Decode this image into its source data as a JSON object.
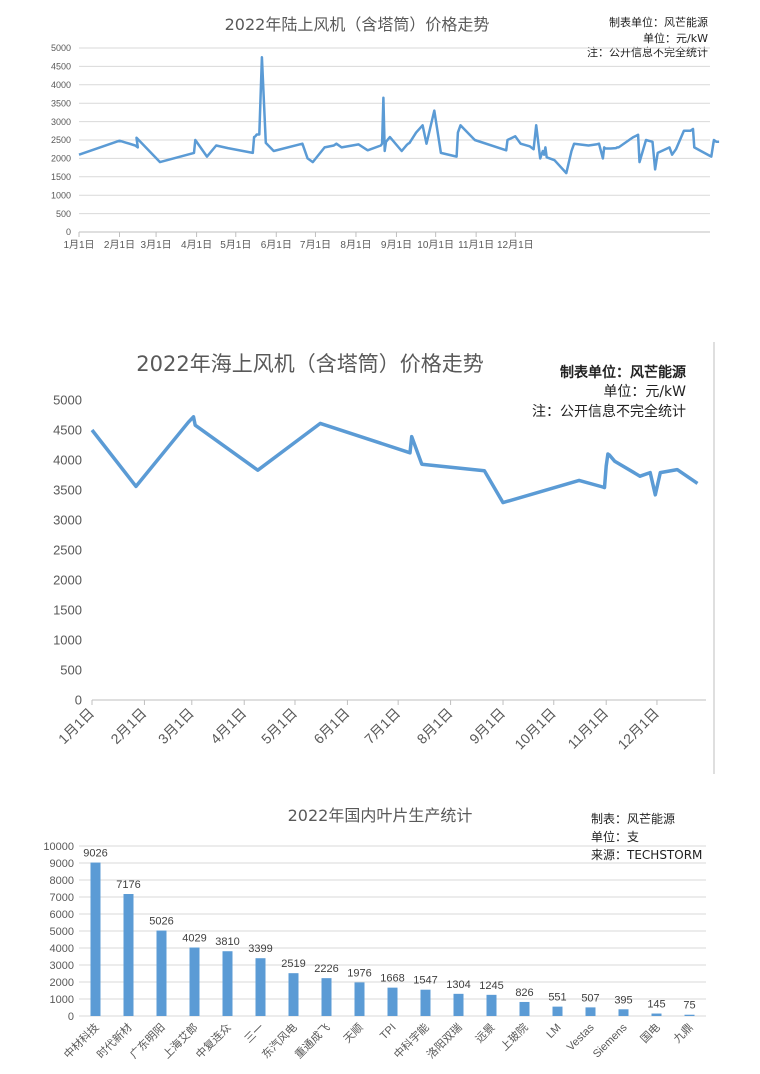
{
  "chart_data": [
    {
      "type": "line",
      "title": "2022年陆上风机（含塔筒）价格走势",
      "notes": [
        "制表单位：风芒能源",
        "单位：元/kW",
        "注：公开信息不完全统计"
      ],
      "color": "#5b9bd5",
      "ylim": [
        0,
        5000
      ],
      "y_ticks": [
        0,
        500,
        1000,
        1500,
        2000,
        2500,
        3000,
        3500,
        4000,
        4500,
        5000
      ],
      "x_ticks": [
        "1月1日",
        "2月1日",
        "3月1日",
        "4月1日",
        "5月1日",
        "6月1日",
        "7月1日",
        "8月1日",
        "9月1日",
        "10月1日",
        "11月1日",
        "12月1日"
      ],
      "grid": true,
      "series": [
        {
          "x": [
            "2022-01-01",
            "2022-02-01",
            "2022-02-13",
            "2022-02-15",
            "2022-02-14",
            "2022-03-04",
            "2022-03-30",
            "2022-03-31",
            "2022-04-09",
            "2022-04-16",
            "2022-04-25",
            "2022-05-14",
            "2022-05-15",
            "2022-05-16",
            "2022-05-17",
            "2022-05-19",
            "2022-05-21",
            "2022-05-24",
            "2022-05-30",
            "2022-06-21",
            "2022-06-25",
            "2022-06-29",
            "2022-07-08",
            "2022-07-15",
            "2022-07-17",
            "2022-07-21",
            "2022-08-03",
            "2022-08-10",
            "2022-08-20",
            "2022-08-21",
            "2022-08-22",
            "2022-08-23",
            "2022-08-24",
            "2022-08-27",
            "2022-09-05",
            "2022-09-09",
            "2022-09-10",
            "2022-09-11",
            "2022-09-16",
            "2022-09-21",
            "2022-09-24",
            "2022-09-30",
            "2022-10-05",
            "2022-10-17",
            "2022-10-18",
            "2022-10-20",
            "2022-10-31",
            "2022-11-24",
            "2022-11-25",
            "2022-12-01",
            "2022-12-05",
            "2022-12-12",
            "2022-12-15",
            "2022-12-17",
            "2022-12-20",
            "2022-12-22",
            "2022-12-23",
            "2022-12-24",
            "2022-12-25",
            "2022-12-31",
            "2023-01-09",
            "2023-01-13",
            "2023-01-15",
            "2023-01-26",
            "2023-02-01",
            "2023-02-03",
            "2023-02-06",
            "2023-02-07",
            "2023-02-08",
            "2023-02-12",
            "2023-02-16",
            "2023-02-17",
            "2023-02-18",
            "2023-03-01",
            "2023-03-05",
            "2023-03-06",
            "2023-03-11",
            "2023-03-16",
            "2023-03-18",
            "2023-03-20",
            "2023-03-29",
            "2023-03-31",
            "2023-04-03",
            "2023-04-09",
            "2023-04-14",
            "2023-04-16",
            "2023-04-17",
            "2023-04-22",
            "2023-04-30",
            "2023-05-02",
            "2023-05-04",
            "2023-05-06"
          ],
          "y": [
            2100,
            2480,
            2350,
            2300,
            2560,
            1900,
            2150,
            2500,
            2050,
            2350,
            2280,
            2150,
            2580,
            2600,
            2650,
            2650,
            4750,
            2420,
            2200,
            2400,
            2000,
            1900,
            2300,
            2350,
            2400,
            2300,
            2380,
            2220,
            2350,
            2400,
            3650,
            2200,
            2450,
            2580,
            2200,
            2370,
            2400,
            2420,
            2700,
            2900,
            2400,
            3300,
            2150,
            2050,
            2700,
            2900,
            2500,
            2220,
            2500,
            2600,
            2400,
            2330,
            2250,
            2900,
            2000,
            2200,
            2100,
            2300,
            2030,
            1950,
            1600,
            2200,
            2400,
            2350,
            2380,
            2400,
            2000,
            2300,
            2270,
            2270,
            2280,
            2300,
            2300,
            2570,
            2640,
            1900,
            2500,
            2450,
            1700,
            2150,
            2300,
            2100,
            2250,
            2750,
            2750,
            2800,
            2300,
            2200,
            2050,
            2500,
            2450,
            2450
          ]
        }
      ]
    },
    {
      "type": "line",
      "title": "2022年海上风机（含塔筒）价格走势",
      "notes": [
        "制表单位：风芒能源",
        "单位：元/kW",
        "注：公开信息不完全统计"
      ],
      "color": "#5b9bd5",
      "ylim": [
        0,
        5000
      ],
      "y_ticks": [
        0,
        500,
        1000,
        1500,
        2000,
        2500,
        3000,
        3500,
        4000,
        4500,
        5000
      ],
      "x_ticks": [
        "1月1日",
        "2月1日",
        "3月1日",
        "4月1日",
        "5月1日",
        "6月1日",
        "7月1日",
        "8月1日",
        "9月1日",
        "10月1日",
        "11月1日",
        "12月1日"
      ],
      "grid": false,
      "series": [
        {
          "x": [
            "2022-01-01",
            "2022-01-27",
            "2022-02-27",
            "2022-03-02",
            "2022-03-03",
            "2022-04-09",
            "2022-05-16",
            "2022-07-08",
            "2022-07-09",
            "2022-07-15",
            "2022-08-21",
            "2022-09-01",
            "2022-10-16",
            "2022-10-30",
            "2022-10-31",
            "2022-11-01",
            "2022-11-02",
            "2022-11-03",
            "2022-11-06",
            "2022-11-21",
            "2022-11-27",
            "2022-11-30",
            "2022-12-03",
            "2022-12-13",
            "2022-12-25"
          ],
          "y": [
            4500,
            3560,
            4630,
            4720,
            4580,
            3830,
            4610,
            4120,
            4390,
            3930,
            3820,
            3290,
            3660,
            3550,
            3540,
            3900,
            4100,
            4080,
            3980,
            3730,
            3790,
            3420,
            3790,
            3840,
            3610
          ]
        }
      ]
    },
    {
      "type": "bar",
      "title": "2022年国内叶片生产统计",
      "notes": [
        "制表：风芒能源",
        "单位：支",
        "来源：TECHSTORM"
      ],
      "color": "#5b9bd5",
      "ylim": [
        0,
        10000
      ],
      "y_ticks": [
        0,
        1000,
        2000,
        3000,
        4000,
        5000,
        6000,
        7000,
        8000,
        9000,
        10000
      ],
      "categories": [
        "中材科技",
        "时代新材",
        "广东明阳",
        "上海艾郎",
        "中复连众",
        "三一",
        "东汽风电",
        "重通成飞",
        "天顺",
        "TPI",
        "中科宇能",
        "洛阳双瑞",
        "远景",
        "上玻院",
        "LM",
        "Vestas",
        "Siemens",
        "国电",
        "九鼎"
      ],
      "values": [
        9026,
        7176,
        5026,
        4029,
        3810,
        3399,
        2519,
        2226,
        1976,
        1668,
        1547,
        1304,
        1245,
        826,
        551,
        507,
        395,
        145,
        75
      ],
      "grid": true
    }
  ]
}
